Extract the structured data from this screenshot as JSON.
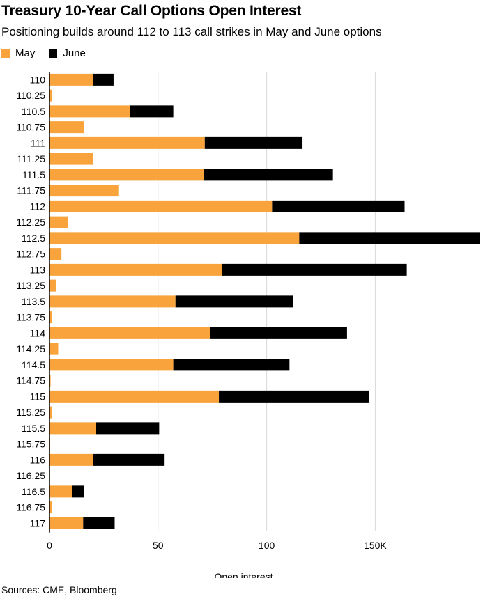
{
  "header": {
    "title": "Treasury 10-Year Call Options Open Interest",
    "subtitle": "Positioning builds around 112 to 113 call strikes in May and June options"
  },
  "legend": [
    {
      "label": "May",
      "color": "#f8a33b"
    },
    {
      "label": "June",
      "color": "#000000"
    }
  ],
  "footer": {
    "source": "Sources: CME, Bloomberg"
  },
  "colors": {
    "may": "#f8a33b",
    "june": "#000000",
    "grid": "#d9d9d9",
    "axis": "#000000"
  },
  "chart_data": {
    "type": "bar",
    "orientation": "horizontal",
    "stacked": true,
    "categories": [
      "110",
      "110.25",
      "110.5",
      "110.75",
      "111",
      "111.25",
      "111.5",
      "111.75",
      "112",
      "112.25",
      "112.5",
      "112.75",
      "113",
      "113.25",
      "113.5",
      "113.75",
      "114",
      "114.25",
      "114.5",
      "114.75",
      "115",
      "115.25",
      "115.5",
      "115.75",
      "116",
      "116.25",
      "116.5",
      "116.75",
      "117"
    ],
    "series": [
      {
        "name": "May",
        "values": [
          20,
          1,
          37,
          16,
          71.5,
          20,
          71,
          32,
          102.5,
          8.5,
          115,
          5.5,
          79.5,
          3,
          58,
          1,
          74,
          4,
          57,
          0.5,
          78,
          1,
          21.5,
          0.3,
          20,
          0.2,
          10.5,
          1,
          15.5
        ]
      },
      {
        "name": "June",
        "values": [
          9.5,
          0,
          20,
          0,
          45,
          0,
          59.5,
          0,
          61,
          0,
          83,
          0,
          85,
          0,
          54,
          0,
          63,
          0,
          53.5,
          0,
          69,
          0,
          29,
          0,
          33,
          0,
          5.5,
          0,
          14.5
        ]
      }
    ],
    "xlabel": "Open interest",
    "ylabel": "",
    "xlim": [
      0,
      198
    ],
    "xticks": [
      {
        "value": 0,
        "label": "0"
      },
      {
        "value": 50,
        "label": "50"
      },
      {
        "value": 100,
        "label": "100"
      },
      {
        "value": 150,
        "label": "150K"
      }
    ],
    "grid": true,
    "legend_position": "top-left"
  }
}
